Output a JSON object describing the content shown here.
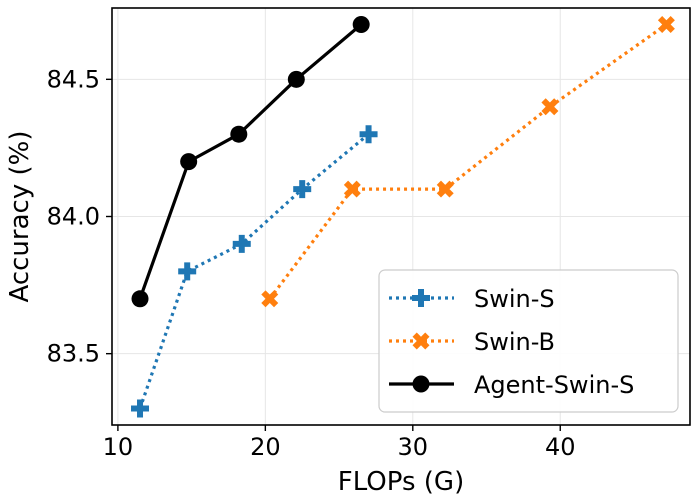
{
  "chart_data": {
    "type": "line",
    "xlabel": "FLOPs (G)",
    "ylabel": "Accuracy (%)",
    "xlim": [
      9.6,
      48.8
    ],
    "ylim": [
      83.24,
      84.76
    ],
    "xticks": [
      10,
      20,
      30,
      40
    ],
    "yticks": [
      83.5,
      84.0,
      84.5
    ],
    "xtick_labels": [
      "10",
      "20",
      "30",
      "40"
    ],
    "ytick_labels": [
      "83.5",
      "84.0",
      "84.5"
    ],
    "grid": true,
    "legend_position": "lower-right",
    "series": [
      {
        "name": "Swin-S",
        "color": "#1f77b4",
        "line_style": "dotted",
        "marker": "plus",
        "x": [
          11.5,
          14.7,
          18.4,
          22.5,
          27.0
        ],
        "y": [
          83.3,
          83.8,
          83.9,
          84.1,
          84.3
        ]
      },
      {
        "name": "Swin-B",
        "color": "#ff7f0e",
        "line_style": "dotted",
        "marker": "x",
        "x": [
          20.3,
          25.9,
          32.2,
          39.3,
          47.2
        ],
        "y": [
          83.7,
          84.1,
          84.1,
          84.4,
          84.7
        ]
      },
      {
        "name": "Agent-Swin-S",
        "color": "#000000",
        "line_style": "solid",
        "marker": "circle",
        "x": [
          11.5,
          14.8,
          18.2,
          22.1,
          26.5
        ],
        "y": [
          83.7,
          84.2,
          84.3,
          84.5,
          84.7
        ]
      }
    ]
  }
}
